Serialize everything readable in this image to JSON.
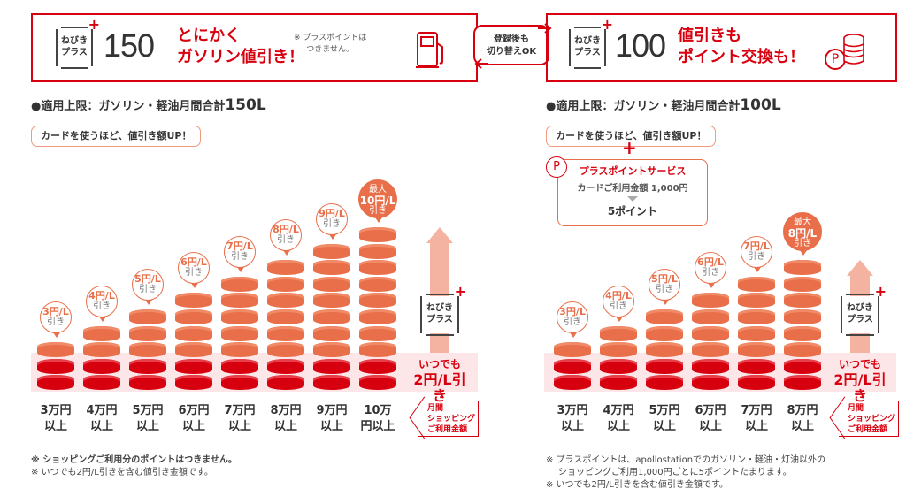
{
  "left_plan": {
    "logo": [
      "ねびき",
      "プラス"
    ],
    "number": "150",
    "catch": [
      "とにかく",
      "ガソリン値引き！"
    ],
    "note": [
      "※ プラスポイントは",
      "つきません。"
    ],
    "icon": "fuel-pump-icon",
    "limit_label": "●適用上限：ガソリン・軽油月間合計",
    "limit_value": "150L",
    "pill": "カードを使うほど、値引き額UP！",
    "chart_data": {
      "type": "bar",
      "categories": [
        "3万円以上",
        "4万円以上",
        "5万円以上",
        "6万円以上",
        "7万円以上",
        "8万円以上",
        "9万円以上",
        "10万円以上"
      ],
      "amounts": [
        "3",
        "4",
        "5",
        "6",
        "7",
        "8",
        "9",
        "10"
      ],
      "values": [
        3,
        4,
        5,
        6,
        7,
        8,
        9,
        10
      ],
      "base_value": 2,
      "unit": "円/L",
      "bubble_suffix": "引き",
      "max_prefix": "最大"
    },
    "footnotes": [
      "※ ショッピングご利用分のポイントはつきません。",
      "※ いつでも2円/L引きを含む値引き金額です。"
    ]
  },
  "right_plan": {
    "logo": [
      "ねびき",
      "プラス"
    ],
    "number": "100",
    "catch": [
      "値引きも",
      "ポイント交換も！"
    ],
    "icon": "point-coins-icon",
    "icon_letter": "P",
    "limit_label": "●適用上限：ガソリン・軽油月間合計",
    "limit_value": "100L",
    "pill": "カードを使うほど、値引き額UP！",
    "plus_sign": "+",
    "point_service": {
      "title": "プラスポイントサービス",
      "line": "カードご利用金額 1,000円",
      "result": "5ポイント"
    },
    "chart_data": {
      "type": "bar",
      "categories": [
        "3万円以上",
        "4万円以上",
        "5万円以上",
        "6万円以上",
        "7万円以上",
        "8万円以上"
      ],
      "amounts": [
        "3",
        "4",
        "5",
        "6",
        "7",
        "8"
      ],
      "values": [
        3,
        4,
        5,
        6,
        7,
        8
      ],
      "base_value": 2,
      "unit": "円/L",
      "bubble_suffix": "引き",
      "max_prefix": "最大"
    },
    "footnotes": [
      "※ プラスポイントは、apollostationでのガソリン・軽油・灯油以外の",
      "ショッピングご利用1,000円ごとに5ポイントたまります。",
      "※ いつでも2円/L引きを含む値引き金額です。"
    ]
  },
  "toggle": [
    "登録後も",
    "切り替えOK"
  ],
  "common": {
    "yen_unit": "万円",
    "over": "以上",
    "always": [
      "いつでも",
      "2円/L引き"
    ],
    "tag": [
      "月間",
      "ショッピング",
      "ご利用金額"
    ],
    "arrow_logo": [
      "ねびき",
      "プラス"
    ]
  },
  "colors": {
    "red": "#d7000f",
    "orange": "#e86f49",
    "band": "#fde6e8",
    "arrow": "#f4b3a0"
  }
}
